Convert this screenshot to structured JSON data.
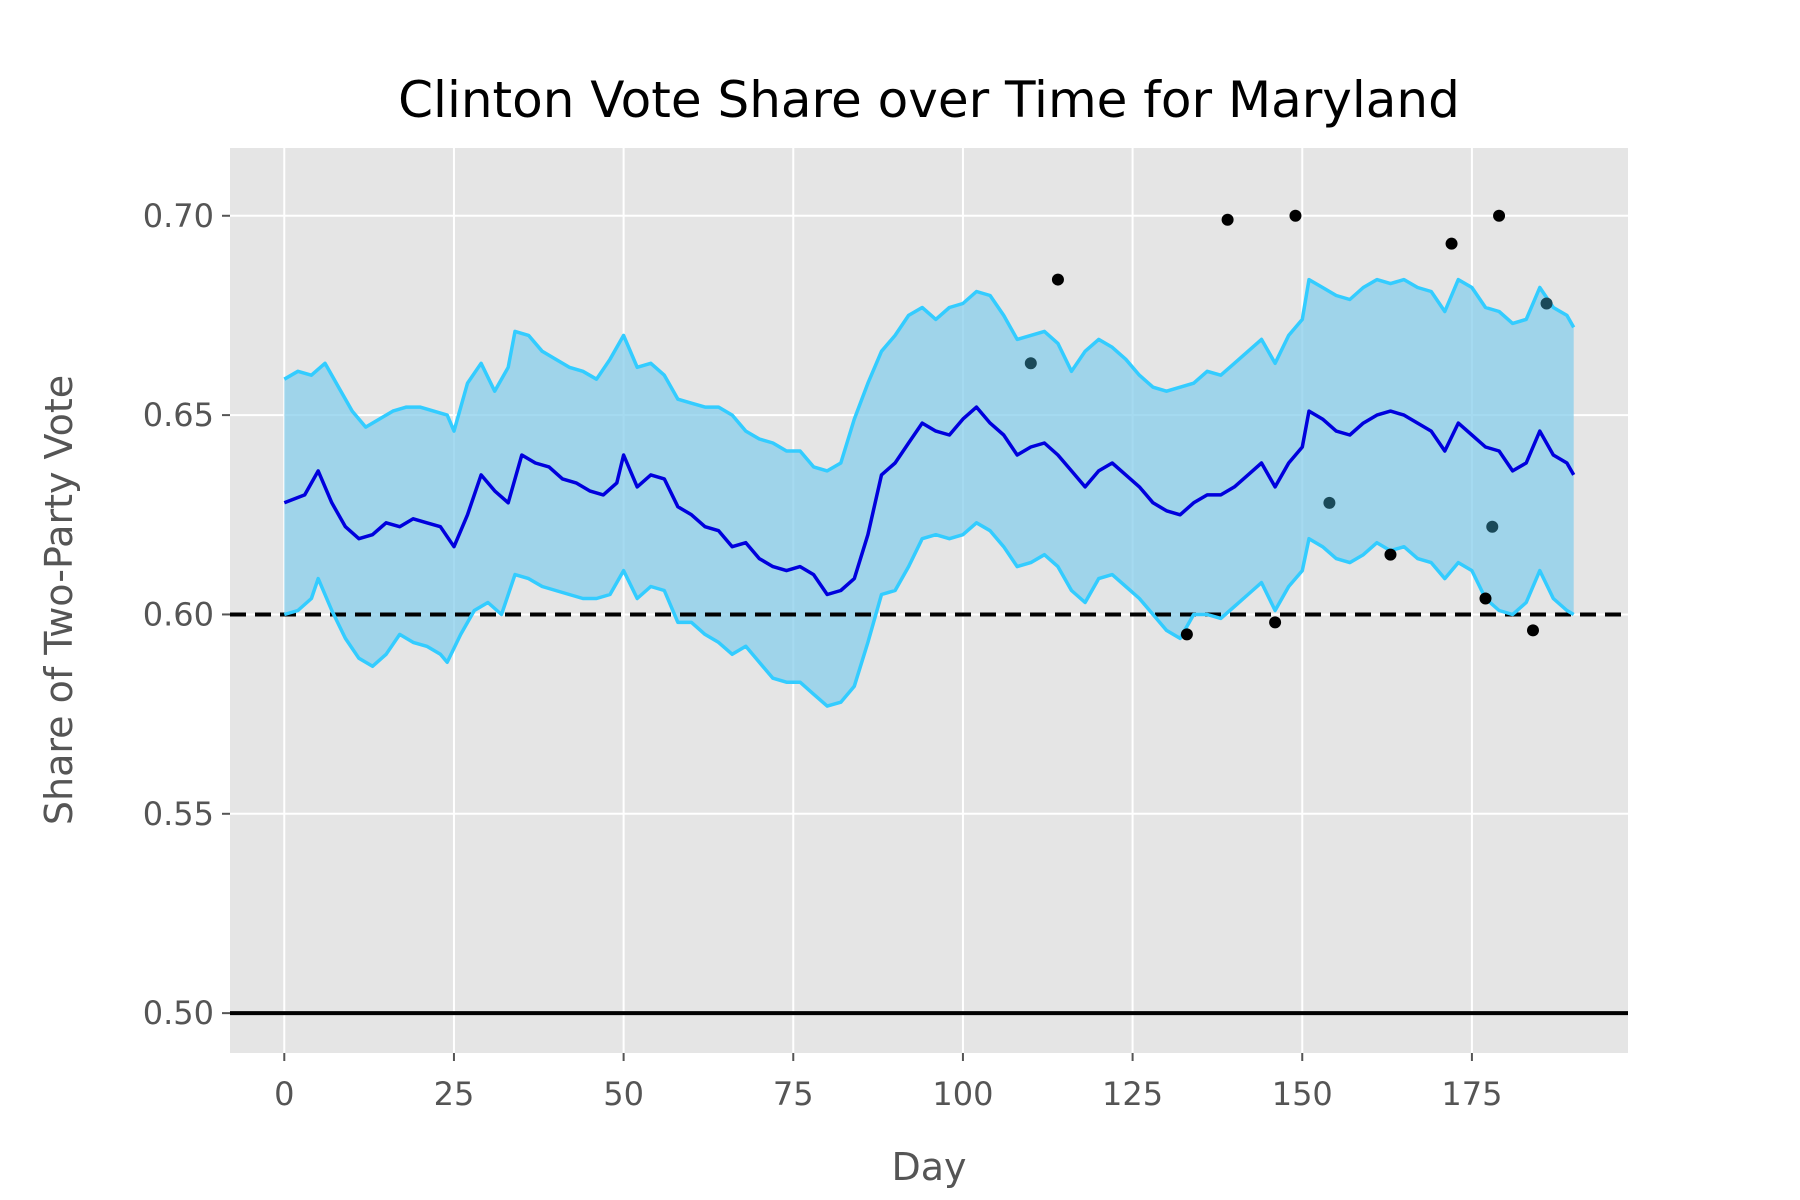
{
  "chart_data": {
    "type": "line",
    "title": "Clinton Vote Share over Time for Maryland",
    "xlabel": "Day",
    "ylabel": "Share of Two-Party Vote",
    "xlim": [
      -8,
      198
    ],
    "ylim": [
      0.49,
      0.717
    ],
    "x_ticks": [
      0,
      25,
      50,
      75,
      100,
      125,
      150,
      175
    ],
    "x_tick_labels": [
      "0",
      "25",
      "50",
      "75",
      "100",
      "125",
      "150",
      "175"
    ],
    "y_ticks": [
      0.5,
      0.55,
      0.6,
      0.65,
      0.7
    ],
    "y_tick_labels": [
      "0.50",
      "0.55",
      "0.60",
      "0.65",
      "0.70"
    ],
    "grid": true,
    "background": "#e5e5e5",
    "colors": {
      "mean_line": "#0000dd",
      "band_fill": "#87ceeb",
      "band_edge": "#33ccff",
      "poll_points": "#000000",
      "reference_lines": "#000000"
    },
    "reference_lines": [
      {
        "y": 0.6,
        "style": "dashed"
      },
      {
        "y": 0.5,
        "style": "solid"
      }
    ],
    "series": [
      {
        "role": "mean",
        "points": [
          [
            0,
            0.628
          ],
          [
            3,
            0.63
          ],
          [
            5,
            0.636
          ],
          [
            7,
            0.628
          ],
          [
            9,
            0.622
          ],
          [
            11,
            0.619
          ],
          [
            13,
            0.62
          ],
          [
            15,
            0.623
          ],
          [
            17,
            0.622
          ],
          [
            19,
            0.624
          ],
          [
            21,
            0.623
          ],
          [
            23,
            0.622
          ],
          [
            25,
            0.617
          ],
          [
            27,
            0.625
          ],
          [
            29,
            0.635
          ],
          [
            31,
            0.631
          ],
          [
            33,
            0.628
          ],
          [
            35,
            0.64
          ],
          [
            37,
            0.638
          ],
          [
            39,
            0.637
          ],
          [
            41,
            0.634
          ],
          [
            43,
            0.633
          ],
          [
            45,
            0.631
          ],
          [
            47,
            0.63
          ],
          [
            49,
            0.633
          ],
          [
            50,
            0.64
          ],
          [
            52,
            0.632
          ],
          [
            54,
            0.635
          ],
          [
            56,
            0.634
          ],
          [
            58,
            0.627
          ],
          [
            60,
            0.625
          ],
          [
            62,
            0.622
          ],
          [
            64,
            0.621
          ],
          [
            66,
            0.617
          ],
          [
            68,
            0.618
          ],
          [
            70,
            0.614
          ],
          [
            72,
            0.612
          ],
          [
            74,
            0.611
          ],
          [
            76,
            0.612
          ],
          [
            78,
            0.61
          ],
          [
            80,
            0.605
          ],
          [
            82,
            0.606
          ],
          [
            84,
            0.609
          ],
          [
            86,
            0.62
          ],
          [
            88,
            0.635
          ],
          [
            90,
            0.638
          ],
          [
            92,
            0.643
          ],
          [
            94,
            0.648
          ],
          [
            96,
            0.646
          ],
          [
            98,
            0.645
          ],
          [
            100,
            0.649
          ],
          [
            102,
            0.652
          ],
          [
            104,
            0.648
          ],
          [
            106,
            0.645
          ],
          [
            108,
            0.64
          ],
          [
            110,
            0.642
          ],
          [
            112,
            0.643
          ],
          [
            114,
            0.64
          ],
          [
            116,
            0.636
          ],
          [
            118,
            0.632
          ],
          [
            120,
            0.636
          ],
          [
            122,
            0.638
          ],
          [
            124,
            0.635
          ],
          [
            126,
            0.632
          ],
          [
            128,
            0.628
          ],
          [
            130,
            0.626
          ],
          [
            132,
            0.625
          ],
          [
            134,
            0.628
          ],
          [
            136,
            0.63
          ],
          [
            138,
            0.63
          ],
          [
            140,
            0.632
          ],
          [
            142,
            0.635
          ],
          [
            144,
            0.638
          ],
          [
            146,
            0.632
          ],
          [
            148,
            0.638
          ],
          [
            150,
            0.642
          ],
          [
            151,
            0.651
          ],
          [
            153,
            0.649
          ],
          [
            155,
            0.646
          ],
          [
            157,
            0.645
          ],
          [
            159,
            0.648
          ],
          [
            161,
            0.65
          ],
          [
            163,
            0.651
          ],
          [
            165,
            0.65
          ],
          [
            167,
            0.648
          ],
          [
            169,
            0.646
          ],
          [
            171,
            0.641
          ],
          [
            173,
            0.648
          ],
          [
            175,
            0.645
          ],
          [
            177,
            0.642
          ],
          [
            179,
            0.641
          ],
          [
            181,
            0.636
          ],
          [
            183,
            0.638
          ],
          [
            185,
            0.646
          ],
          [
            187,
            0.64
          ],
          [
            189,
            0.638
          ],
          [
            190,
            0.635
          ]
        ]
      },
      {
        "role": "upper_bound",
        "points": [
          [
            0,
            0.659
          ],
          [
            2,
            0.661
          ],
          [
            4,
            0.66
          ],
          [
            6,
            0.663
          ],
          [
            8,
            0.657
          ],
          [
            10,
            0.651
          ],
          [
            12,
            0.647
          ],
          [
            14,
            0.649
          ],
          [
            16,
            0.651
          ],
          [
            18,
            0.652
          ],
          [
            20,
            0.652
          ],
          [
            22,
            0.651
          ],
          [
            24,
            0.65
          ],
          [
            25,
            0.646
          ],
          [
            27,
            0.658
          ],
          [
            29,
            0.663
          ],
          [
            31,
            0.656
          ],
          [
            33,
            0.662
          ],
          [
            34,
            0.671
          ],
          [
            36,
            0.67
          ],
          [
            38,
            0.666
          ],
          [
            40,
            0.664
          ],
          [
            42,
            0.662
          ],
          [
            44,
            0.661
          ],
          [
            46,
            0.659
          ],
          [
            48,
            0.664
          ],
          [
            50,
            0.67
          ],
          [
            52,
            0.662
          ],
          [
            54,
            0.663
          ],
          [
            56,
            0.66
          ],
          [
            58,
            0.654
          ],
          [
            60,
            0.653
          ],
          [
            62,
            0.652
          ],
          [
            64,
            0.652
          ],
          [
            66,
            0.65
          ],
          [
            68,
            0.646
          ],
          [
            70,
            0.644
          ],
          [
            72,
            0.643
          ],
          [
            74,
            0.641
          ],
          [
            76,
            0.641
          ],
          [
            78,
            0.637
          ],
          [
            80,
            0.636
          ],
          [
            82,
            0.638
          ],
          [
            84,
            0.649
          ],
          [
            86,
            0.658
          ],
          [
            88,
            0.666
          ],
          [
            90,
            0.67
          ],
          [
            92,
            0.675
          ],
          [
            94,
            0.677
          ],
          [
            96,
            0.674
          ],
          [
            98,
            0.677
          ],
          [
            100,
            0.678
          ],
          [
            102,
            0.681
          ],
          [
            104,
            0.68
          ],
          [
            106,
            0.675
          ],
          [
            108,
            0.669
          ],
          [
            110,
            0.67
          ],
          [
            112,
            0.671
          ],
          [
            114,
            0.668
          ],
          [
            116,
            0.661
          ],
          [
            118,
            0.666
          ],
          [
            120,
            0.669
          ],
          [
            122,
            0.667
          ],
          [
            124,
            0.664
          ],
          [
            126,
            0.66
          ],
          [
            128,
            0.657
          ],
          [
            130,
            0.656
          ],
          [
            132,
            0.657
          ],
          [
            134,
            0.658
          ],
          [
            136,
            0.661
          ],
          [
            138,
            0.66
          ],
          [
            140,
            0.663
          ],
          [
            142,
            0.666
          ],
          [
            144,
            0.669
          ],
          [
            146,
            0.663
          ],
          [
            148,
            0.67
          ],
          [
            150,
            0.674
          ],
          [
            151,
            0.684
          ],
          [
            153,
            0.682
          ],
          [
            155,
            0.68
          ],
          [
            157,
            0.679
          ],
          [
            159,
            0.682
          ],
          [
            161,
            0.684
          ],
          [
            163,
            0.683
          ],
          [
            165,
            0.684
          ],
          [
            167,
            0.682
          ],
          [
            169,
            0.681
          ],
          [
            171,
            0.676
          ],
          [
            173,
            0.684
          ],
          [
            175,
            0.682
          ],
          [
            177,
            0.677
          ],
          [
            179,
            0.676
          ],
          [
            181,
            0.673
          ],
          [
            183,
            0.674
          ],
          [
            185,
            0.682
          ],
          [
            187,
            0.677
          ],
          [
            189,
            0.675
          ],
          [
            190,
            0.672
          ]
        ]
      },
      {
        "role": "lower_bound",
        "points": [
          [
            0,
            0.6
          ],
          [
            2,
            0.601
          ],
          [
            4,
            0.604
          ],
          [
            5,
            0.609
          ],
          [
            7,
            0.601
          ],
          [
            9,
            0.594
          ],
          [
            11,
            0.589
          ],
          [
            13,
            0.587
          ],
          [
            15,
            0.59
          ],
          [
            17,
            0.595
          ],
          [
            19,
            0.593
          ],
          [
            21,
            0.592
          ],
          [
            23,
            0.59
          ],
          [
            24,
            0.588
          ],
          [
            26,
            0.595
          ],
          [
            28,
            0.601
          ],
          [
            30,
            0.603
          ],
          [
            32,
            0.6
          ],
          [
            34,
            0.61
          ],
          [
            36,
            0.609
          ],
          [
            38,
            0.607
          ],
          [
            40,
            0.606
          ],
          [
            42,
            0.605
          ],
          [
            44,
            0.604
          ],
          [
            46,
            0.604
          ],
          [
            48,
            0.605
          ],
          [
            50,
            0.611
          ],
          [
            52,
            0.604
          ],
          [
            54,
            0.607
          ],
          [
            56,
            0.606
          ],
          [
            58,
            0.598
          ],
          [
            60,
            0.598
          ],
          [
            62,
            0.595
          ],
          [
            64,
            0.593
          ],
          [
            66,
            0.59
          ],
          [
            68,
            0.592
          ],
          [
            70,
            0.588
          ],
          [
            72,
            0.584
          ],
          [
            74,
            0.583
          ],
          [
            76,
            0.583
          ],
          [
            78,
            0.58
          ],
          [
            80,
            0.577
          ],
          [
            82,
            0.578
          ],
          [
            84,
            0.582
          ],
          [
            86,
            0.593
          ],
          [
            88,
            0.605
          ],
          [
            90,
            0.606
          ],
          [
            92,
            0.612
          ],
          [
            94,
            0.619
          ],
          [
            96,
            0.62
          ],
          [
            98,
            0.619
          ],
          [
            100,
            0.62
          ],
          [
            102,
            0.623
          ],
          [
            104,
            0.621
          ],
          [
            106,
            0.617
          ],
          [
            108,
            0.612
          ],
          [
            110,
            0.613
          ],
          [
            112,
            0.615
          ],
          [
            114,
            0.612
          ],
          [
            116,
            0.606
          ],
          [
            118,
            0.603
          ],
          [
            120,
            0.609
          ],
          [
            122,
            0.61
          ],
          [
            124,
            0.607
          ],
          [
            126,
            0.604
          ],
          [
            128,
            0.6
          ],
          [
            130,
            0.596
          ],
          [
            132,
            0.594
          ],
          [
            134,
            0.6
          ],
          [
            136,
            0.6
          ],
          [
            138,
            0.599
          ],
          [
            140,
            0.602
          ],
          [
            142,
            0.605
          ],
          [
            144,
            0.608
          ],
          [
            146,
            0.601
          ],
          [
            148,
            0.607
          ],
          [
            150,
            0.611
          ],
          [
            151,
            0.619
          ],
          [
            153,
            0.617
          ],
          [
            155,
            0.614
          ],
          [
            157,
            0.613
          ],
          [
            159,
            0.615
          ],
          [
            161,
            0.618
          ],
          [
            163,
            0.616
          ],
          [
            165,
            0.617
          ],
          [
            167,
            0.614
          ],
          [
            169,
            0.613
          ],
          [
            171,
            0.609
          ],
          [
            173,
            0.613
          ],
          [
            175,
            0.611
          ],
          [
            177,
            0.604
          ],
          [
            179,
            0.601
          ],
          [
            181,
            0.6
          ],
          [
            183,
            0.603
          ],
          [
            185,
            0.611
          ],
          [
            187,
            0.604
          ],
          [
            189,
            0.601
          ],
          [
            190,
            0.6
          ]
        ]
      },
      {
        "role": "polls",
        "points": [
          [
            110,
            0.663
          ],
          [
            114,
            0.684
          ],
          [
            133,
            0.595
          ],
          [
            139,
            0.699
          ],
          [
            146,
            0.598
          ],
          [
            149,
            0.7
          ],
          [
            154,
            0.628
          ],
          [
            163,
            0.615
          ],
          [
            172,
            0.693
          ],
          [
            177,
            0.604
          ],
          [
            178,
            0.622
          ],
          [
            179,
            0.7
          ],
          [
            184,
            0.596
          ],
          [
            186,
            0.678
          ]
        ]
      }
    ]
  }
}
